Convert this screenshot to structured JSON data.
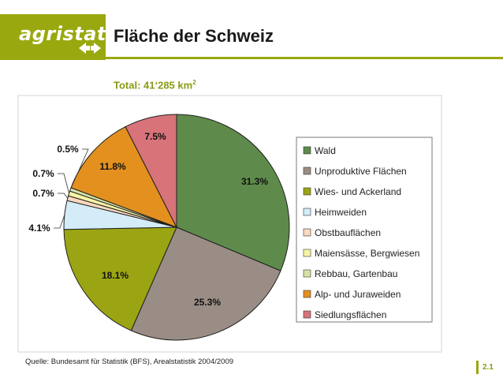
{
  "header": {
    "logo_text": "agristat",
    "title": "Fläche der Schweiz",
    "subtitle_prefix": "Total: 41‘285 km",
    "subtitle_sup": "2"
  },
  "footer": {
    "source": "Quelle: Bundesamt für Statistik (BFS), Arealstatistik 2004/2009",
    "page_number": "2.1"
  },
  "colors": {
    "brand": "#9aa80f",
    "brand_text": "#8b9a12"
  },
  "chart_data": {
    "type": "pie",
    "title": "",
    "slices": [
      {
        "name": "Wald",
        "value": 31.3,
        "label": "31.3%",
        "color": "#5e8b4b"
      },
      {
        "name": "Unproduktive Flächen",
        "value": 25.3,
        "label": "25.3%",
        "color": "#9a8d85"
      },
      {
        "name": "Wies- und Ackerland",
        "value": 18.1,
        "label": "18.1%",
        "color": "#9ba513"
      },
      {
        "name": "Heimweiden",
        "value": 4.1,
        "label": "4.1%",
        "color": "#d3ecf8"
      },
      {
        "name": "Obstbauflächen",
        "value": 0.7,
        "label": "0.7%",
        "color": "#fbd8bf"
      },
      {
        "name": "Maiensässe, Bergwiesen",
        "value": 0.7,
        "label": "0.7%",
        "color": "#f8f4a6"
      },
      {
        "name": "Rebbau, Gartenbau",
        "value": 0.5,
        "label": "0.5%",
        "color": "#d7e2a7"
      },
      {
        "name": "Alp- und Juraweiden",
        "value": 11.8,
        "label": "11.8%",
        "color": "#e3901f"
      },
      {
        "name": "Siedlungsflächen",
        "value": 7.5,
        "label": "7.5%",
        "color": "#d8737a"
      }
    ],
    "legend_placement": "right"
  }
}
